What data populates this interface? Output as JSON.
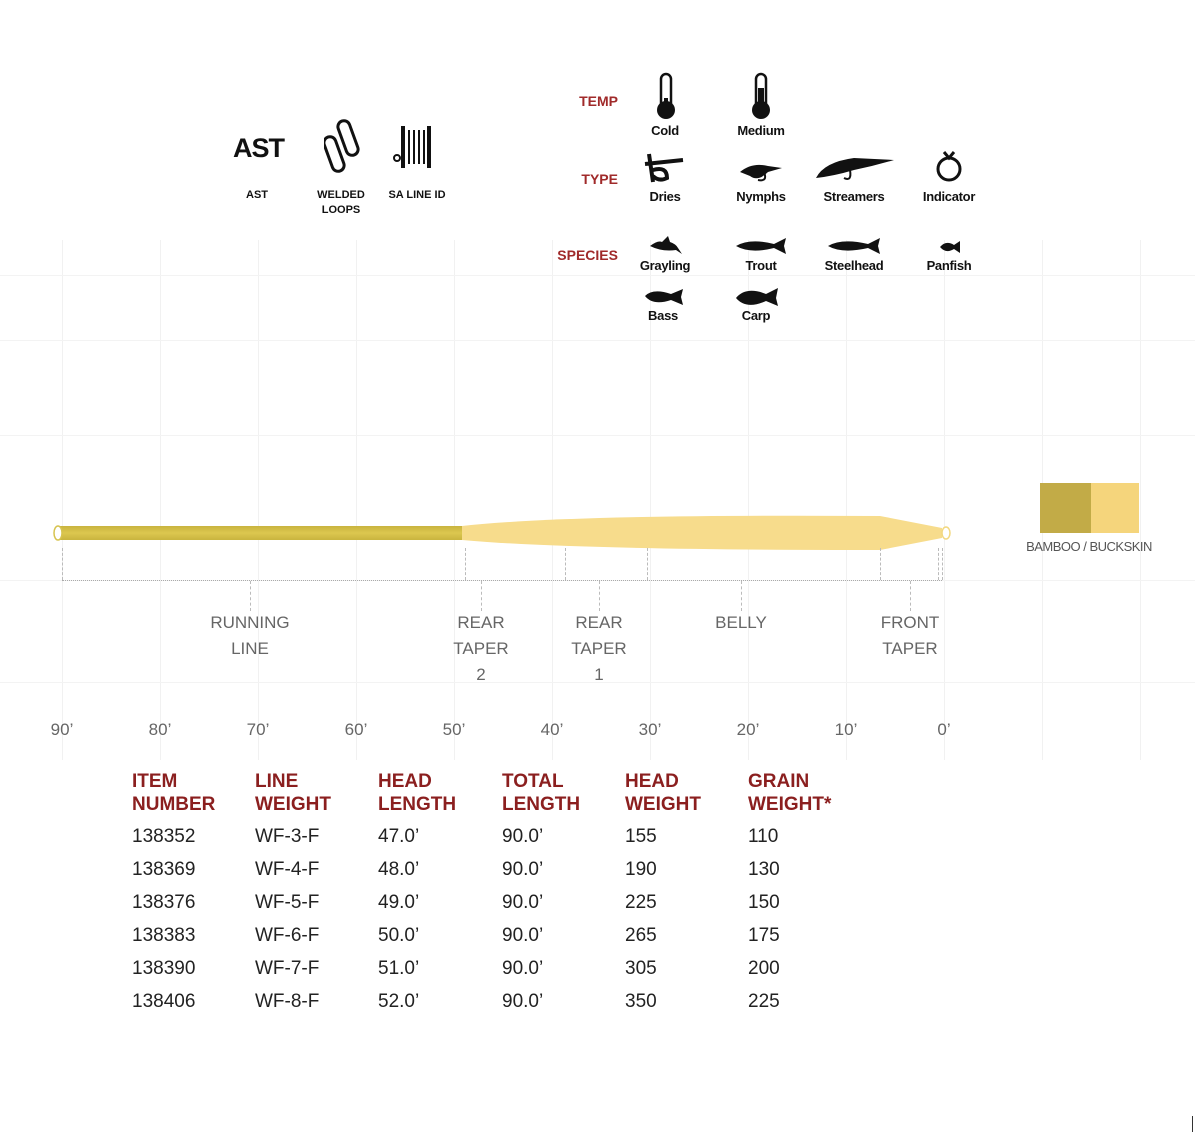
{
  "features": [
    {
      "logo": "AST",
      "label": "AST"
    },
    {
      "icon": "welded-loops-icon",
      "label": "WELDED LOOPS"
    },
    {
      "icon": "sa-line-id-icon",
      "label": "SA LINE ID"
    }
  ],
  "temp": {
    "label": "TEMP",
    "items": [
      "Cold",
      "Medium"
    ]
  },
  "type": {
    "label": "TYPE",
    "items": [
      "Dries",
      "Nymphs",
      "Streamers",
      "Indicator"
    ]
  },
  "species": {
    "label": "SPECIES",
    "items": [
      "Grayling",
      "Trout",
      "Steelhead",
      "Panfish",
      "Bass",
      "Carp"
    ]
  },
  "color": {
    "label": "BAMBOO / BUCKSKIN",
    "swatches": [
      "#c2ab47",
      "#f5d57c"
    ]
  },
  "segments": [
    {
      "l1": "RUNNING",
      "l2": "LINE",
      "l3": ""
    },
    {
      "l1": "REAR",
      "l2": "TAPER",
      "l3": "2"
    },
    {
      "l1": "REAR",
      "l2": "TAPER",
      "l3": "1"
    },
    {
      "l1": "BELLY",
      "l2": "",
      "l3": ""
    },
    {
      "l1": "FRONT",
      "l2": "TAPER",
      "l3": ""
    }
  ],
  "ticks": [
    "90’",
    "80’",
    "70’",
    "60’",
    "50’",
    "40’",
    "30’",
    "20’",
    "10’",
    "0’"
  ],
  "table": {
    "headers": [
      [
        "ITEM",
        "NUMBER"
      ],
      [
        "LINE",
        "WEIGHT"
      ],
      [
        "HEAD",
        "LENGTH"
      ],
      [
        "TOTAL",
        "LENGTH"
      ],
      [
        "HEAD",
        "WEIGHT"
      ],
      [
        "GRAIN",
        "WEIGHT*"
      ]
    ],
    "rows": [
      [
        "138352",
        "WF-3-F",
        "47.0’",
        "90.0’",
        "155",
        "110"
      ],
      [
        "138369",
        "WF-4-F",
        "48.0’",
        "90.0’",
        "190",
        "130"
      ],
      [
        "138376",
        "WF-5-F",
        "49.0’",
        "90.0’",
        "225",
        "150"
      ],
      [
        "138383",
        "WF-6-F",
        "50.0’",
        "90.0’",
        "265",
        "175"
      ],
      [
        "138390",
        "WF-7-F",
        "51.0’",
        "90.0’",
        "305",
        "200"
      ],
      [
        "138406",
        "WF-8-F",
        "52.0’",
        "90.0’",
        "350",
        "225"
      ]
    ]
  }
}
